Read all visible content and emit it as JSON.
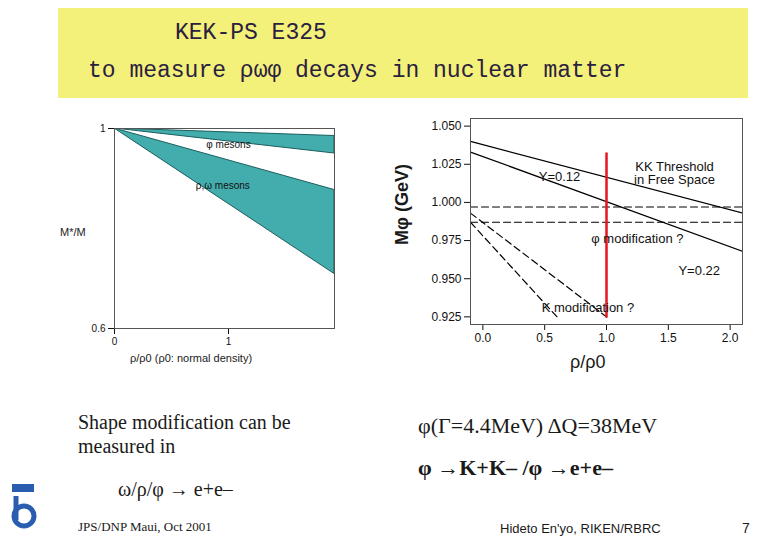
{
  "header": {
    "title": "KEK-PS E325",
    "subtitle": "to measure ρωφ decays  in nuclear matter"
  },
  "chart_data": [
    {
      "type": "area",
      "xlabel": "ρ/ρ0 (ρ0: normal density)",
      "ylabel": "M*/M",
      "xlim": [
        0,
        1.93
      ],
      "ylim": [
        0.6,
        1.0
      ],
      "xticks": [
        0,
        1
      ],
      "yticks": [
        1,
        0.6
      ],
      "grid": false,
      "series": [
        {
          "name": "φ mesons",
          "color": "#2fa3a3",
          "x": [
            0,
            1.93
          ],
          "upper": [
            1.0,
            0.985
          ],
          "lower": [
            1.0,
            0.95
          ]
        },
        {
          "name": "ρ,ω mesons",
          "color": "#2fa3a3",
          "x": [
            0,
            1.93
          ],
          "upper": [
            1.0,
            0.877
          ],
          "lower": [
            1.0,
            0.709
          ]
        }
      ],
      "annotations": [
        {
          "text": "φ mesons",
          "x": 1.0,
          "y": 0.968
        },
        {
          "text": "ρ,ω mesons",
          "x": 0.95,
          "y": 0.885
        }
      ]
    },
    {
      "type": "line",
      "xlabel": "ρ/ρ0",
      "ylabel": "Mφ (GeV)",
      "xlim": [
        -0.1,
        2.1
      ],
      "ylim": [
        0.92,
        1.055
      ],
      "xticks": [
        {
          "value": 0,
          "label": "0.0"
        },
        {
          "value": 0.5,
          "label": "0.5"
        },
        {
          "value": 1,
          "label": "1.0"
        },
        {
          "value": 1.5,
          "label": "1.5"
        },
        {
          "value": 2,
          "label": "2.0"
        }
      ],
      "yticks": [
        {
          "value": 0.925,
          "label": "0.925"
        },
        {
          "value": 0.95,
          "label": "0.950"
        },
        {
          "value": 0.975,
          "label": "0.975"
        },
        {
          "value": 1.0,
          "label": "1.000"
        },
        {
          "value": 1.025,
          "label": "1.025"
        },
        {
          "value": 1.05,
          "label": "1.050"
        }
      ],
      "grid": false,
      "series": [
        {
          "name": "Y=0.12",
          "color": "#000000",
          "line_style": "solid",
          "x": [
            -0.1,
            2.1
          ],
          "values": [
            1.04,
            0.993
          ]
        },
        {
          "name": "Y=0.22",
          "color": "#000000",
          "line_style": "solid",
          "x": [
            -0.1,
            2.1
          ],
          "values": [
            1.033,
            0.968
          ]
        },
        {
          "color": "#000000",
          "line_style": "dashed",
          "x": [
            -0.1,
            2.1
          ],
          "values": [
            0.997,
            0.997
          ]
        },
        {
          "color": "#000000",
          "line_style": "dashed",
          "x": [
            -0.1,
            2.1
          ],
          "values": [
            0.987,
            0.987
          ]
        },
        {
          "color": "#000000",
          "line_style": "dashed",
          "x": [
            -0.1,
            1.0
          ],
          "values": [
            0.993,
            0.925
          ]
        },
        {
          "color": "#000000",
          "line_style": "dashed",
          "x": [
            -0.1,
            0.6
          ],
          "values": [
            0.987,
            0.925
          ]
        },
        {
          "color": "#e8141e",
          "line_style": "solid",
          "x": [
            1.0,
            1.0
          ],
          "values": [
            0.925,
            1.032
          ]
        }
      ],
      "annotations": [
        {
          "text": "Y=0.12",
          "x": 0.62,
          "y": 1.017
        },
        {
          "text": "Y=0.22",
          "x": 1.75,
          "y": 0.955
        },
        {
          "text": "KK Threshold\nin Free Space",
          "x": 1.55,
          "y": 1.019
        },
        {
          "text": "φ modification ?",
          "x": 1.25,
          "y": 0.976
        },
        {
          "text": "K modification ?",
          "x": 0.85,
          "y": 0.931
        }
      ]
    }
  ],
  "notes": {
    "left_caption": "Shape modification can be\nmeasured in",
    "left_formula": "ω/ρ/φ →  e+e–",
    "right_line1": "φ(Γ=4.4MeV)  ΔQ=38MeV",
    "right_line2": "φ →K+K– /φ →e+e–"
  },
  "footer": {
    "left": "JPS/DNP Maui, Oct 2001",
    "right": "Hideto En'yo, RIKEN/RBRC",
    "page": "7"
  }
}
